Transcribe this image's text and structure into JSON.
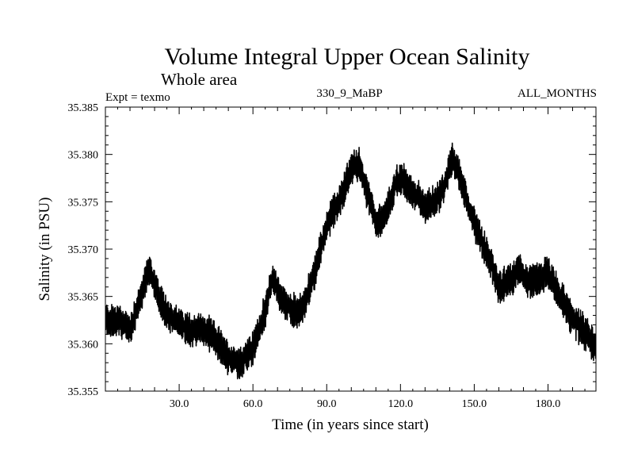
{
  "chart_data": {
    "type": "line",
    "title": "Volume Integral Upper Ocean Salinity",
    "subtitle": "Whole area",
    "experiment_label": "Expt = texmo",
    "run_label": "330_9_MaBP",
    "months_label": "ALL_MONTHS",
    "xlabel": "Time (in years since start)",
    "ylabel": "Salinity (in PSU)",
    "xlim": [
      0,
      199.5
    ],
    "ylim": [
      35.355,
      35.385
    ],
    "x_ticks": [
      30,
      60,
      90,
      120,
      150,
      180
    ],
    "x_tick_labels": [
      "30.0",
      "60.0",
      "90.0",
      "120.0",
      "150.0",
      "180.0"
    ],
    "y_ticks": [
      35.355,
      35.36,
      35.365,
      35.37,
      35.375,
      35.38,
      35.385
    ],
    "y_tick_labels": [
      "35.355",
      "35.360",
      "35.365",
      "35.370",
      "35.375",
      "35.380",
      "35.385"
    ],
    "grid": false,
    "series": [
      {
        "name": "salinity",
        "color": "#000000",
        "x": [
          0,
          5,
          10,
          15,
          18,
          22,
          26,
          30,
          35,
          40,
          45,
          50,
          55,
          60,
          65,
          68,
          72,
          76,
          80,
          85,
          90,
          95,
          100,
          103,
          106,
          110,
          114,
          118,
          121,
          124,
          127,
          130,
          134,
          138,
          141,
          144,
          148,
          152,
          156,
          160,
          164,
          168,
          172,
          176,
          180,
          184,
          188,
          192,
          196,
          199.5
        ],
        "values": [
          35.3625,
          35.3625,
          35.3615,
          35.3655,
          35.368,
          35.3645,
          35.363,
          35.362,
          35.3615,
          35.3615,
          35.3605,
          35.3585,
          35.358,
          35.3595,
          35.3635,
          35.367,
          35.3645,
          35.3635,
          35.3635,
          35.3675,
          35.3725,
          35.375,
          35.3785,
          35.379,
          35.3765,
          35.373,
          35.3735,
          35.377,
          35.3775,
          35.376,
          35.3755,
          35.3745,
          35.375,
          35.3765,
          35.3795,
          35.378,
          35.374,
          35.3715,
          35.369,
          35.366,
          35.3665,
          35.368,
          35.3665,
          35.367,
          35.3675,
          35.3655,
          35.3635,
          35.362,
          35.361,
          35.3595
        ]
      }
    ]
  }
}
